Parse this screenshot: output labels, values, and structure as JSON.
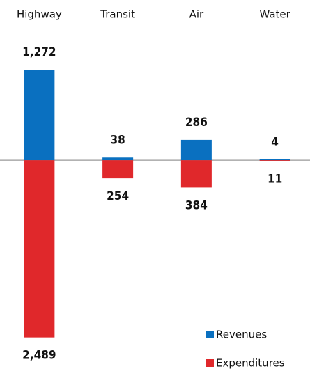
{
  "chart_data": {
    "type": "bar",
    "categories": [
      "Highway",
      "Transit",
      "Air",
      "Water"
    ],
    "series": [
      {
        "name": "Revenues",
        "color": "#0a70c0",
        "values": [
          1272,
          38,
          286,
          4
        ],
        "value_labels": [
          "1,272",
          "38",
          "286",
          "4"
        ]
      },
      {
        "name": "Expenditures",
        "color": "#e0282b",
        "values": [
          -2489,
          -254,
          -384,
          -11
        ],
        "value_labels": [
          "2,489",
          "254",
          "384",
          "11"
        ]
      }
    ],
    "ylim": [
      -2600,
      1400
    ],
    "legend": "bottom-right"
  }
}
